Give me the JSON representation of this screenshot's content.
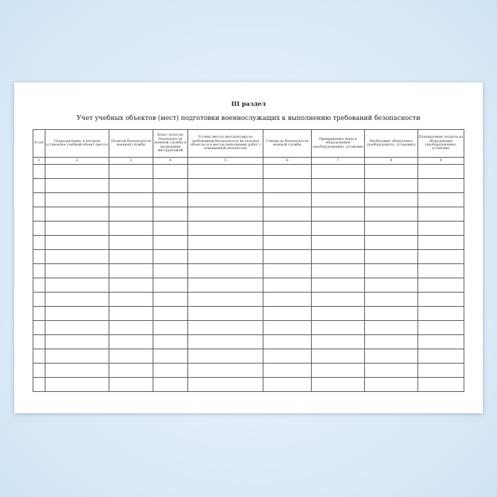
{
  "section": "III раздел",
  "title": "Учет учебных объектов (мест) подготовки военнослужащих к выполнению требований безопасности",
  "columns": [
    {
      "header": "№ п/п",
      "number": "1"
    },
    {
      "header": "Подразделение, в котором установлен учебный объект (место)",
      "number": "2"
    },
    {
      "header": "Полигон безопасности военной службы",
      "number": "3"
    },
    {
      "header": "Класс (классы) безопасности военной службы и проведения инструктажей",
      "number": "4"
    },
    {
      "header": "Уголки (места) инструктажа по требованиям безопасности на опасных объектах и в местах выполнения работ с повышенной опасностью",
      "number": "5"
    },
    {
      "header": "Стенды по безопасности военной службы",
      "number": "6"
    },
    {
      "header": "Принимаемые меры к оборудованию (дооборудованию), установке",
      "number": "7"
    },
    {
      "header": "Необходимо оборудовать (дооборудовать), установить",
      "number": "8"
    },
    {
      "header": "Планируемые затраты на оборудование (дооборудование), установку",
      "number": "9"
    }
  ],
  "empty_rows": 16
}
